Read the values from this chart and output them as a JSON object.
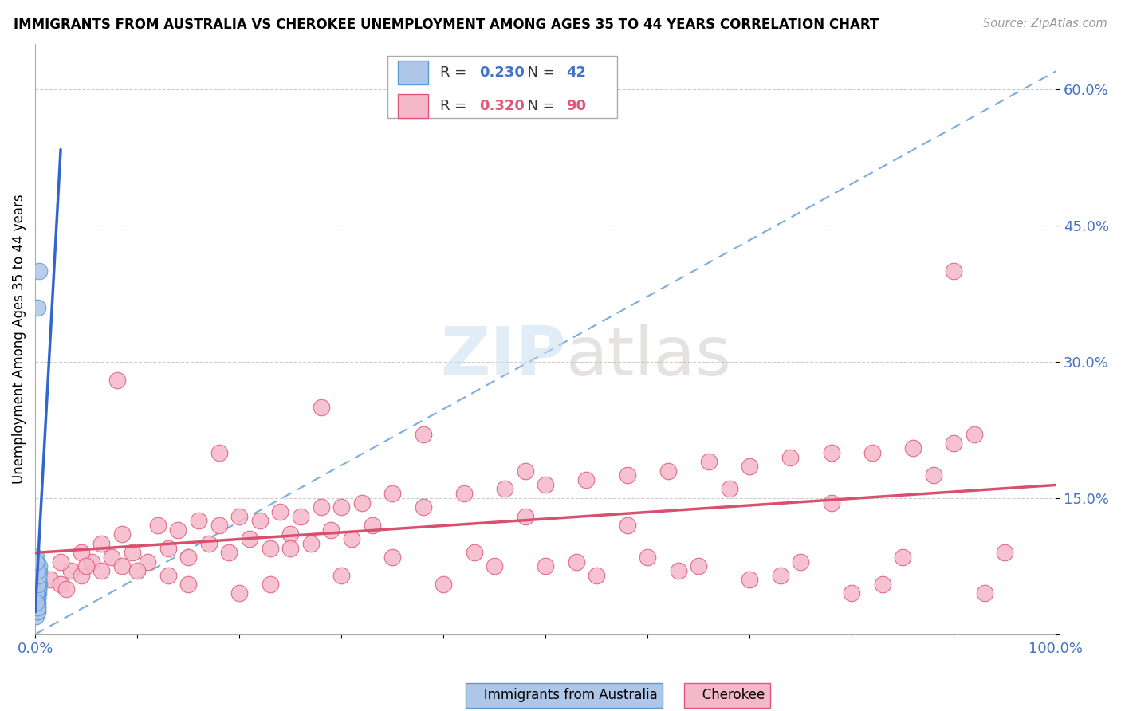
{
  "title": "IMMIGRANTS FROM AUSTRALIA VS CHEROKEE UNEMPLOYMENT AMONG AGES 35 TO 44 YEARS CORRELATION CHART",
  "source": "Source: ZipAtlas.com",
  "ylabel": "Unemployment Among Ages 35 to 44 years",
  "xlim": [
    0.0,
    1.0
  ],
  "ylim": [
    0.0,
    0.65
  ],
  "xticks": [
    0.0,
    0.1,
    0.2,
    0.3,
    0.4,
    0.5,
    0.6,
    0.7,
    0.8,
    0.9,
    1.0
  ],
  "xticklabels": [
    "0.0%",
    "",
    "",
    "",
    "",
    "",
    "",
    "",
    "",
    "",
    "100.0%"
  ],
  "yticks": [
    0.0,
    0.15,
    0.3,
    0.45,
    0.6
  ],
  "yticklabels": [
    "",
    "15.0%",
    "30.0%",
    "45.0%",
    "60.0%"
  ],
  "legend1_r": "0.230",
  "legend1_n": "42",
  "legend2_r": "0.320",
  "legend2_n": "90",
  "color_australia_fill": "#aec6e8",
  "color_australia_edge": "#5b9bd5",
  "color_cherokee_fill": "#f5b8cb",
  "color_cherokee_edge": "#e05878",
  "color_line_australia_solid": "#3366cc",
  "color_line_australia_dash": "#7aaddd",
  "color_line_cherokee": "#d94f6e",
  "watermark_color": "#d8eaf8",
  "tick_color": "#4472c4",
  "aus_x": [
    0.002,
    0.001,
    0.001,
    0.003,
    0.002,
    0.002,
    0.001,
    0.003,
    0.004,
    0.002,
    0.001,
    0.003,
    0.002,
    0.001,
    0.004,
    0.003,
    0.002,
    0.001,
    0.002,
    0.001,
    0.003,
    0.002,
    0.001,
    0.002,
    0.003,
    0.001,
    0.004,
    0.002,
    0.003,
    0.001,
    0.002,
    0.001,
    0.003,
    0.002,
    0.001,
    0.002,
    0.003,
    0.001,
    0.002,
    0.001,
    0.004,
    0.002
  ],
  "aus_y": [
    0.035,
    0.025,
    0.02,
    0.05,
    0.03,
    0.04,
    0.06,
    0.045,
    0.055,
    0.025,
    0.035,
    0.065,
    0.04,
    0.05,
    0.07,
    0.06,
    0.075,
    0.085,
    0.045,
    0.03,
    0.055,
    0.065,
    0.08,
    0.045,
    0.05,
    0.06,
    0.075,
    0.035,
    0.055,
    0.07,
    0.025,
    0.04,
    0.06,
    0.03,
    0.045,
    0.055,
    0.065,
    0.035,
    0.07,
    0.08,
    0.4,
    0.36
  ],
  "che_x": [
    0.015,
    0.025,
    0.035,
    0.045,
    0.055,
    0.065,
    0.075,
    0.085,
    0.095,
    0.11,
    0.13,
    0.15,
    0.17,
    0.19,
    0.21,
    0.23,
    0.25,
    0.27,
    0.29,
    0.31,
    0.025,
    0.045,
    0.065,
    0.085,
    0.12,
    0.14,
    0.16,
    0.18,
    0.2,
    0.22,
    0.24,
    0.26,
    0.28,
    0.32,
    0.35,
    0.38,
    0.42,
    0.46,
    0.5,
    0.54,
    0.58,
    0.62,
    0.66,
    0.7,
    0.74,
    0.78,
    0.82,
    0.86,
    0.9,
    0.3,
    0.1,
    0.2,
    0.3,
    0.4,
    0.5,
    0.6,
    0.7,
    0.8,
    0.9,
    0.05,
    0.15,
    0.25,
    0.35,
    0.45,
    0.55,
    0.65,
    0.75,
    0.85,
    0.95,
    0.08,
    0.18,
    0.28,
    0.38,
    0.48,
    0.58,
    0.68,
    0.78,
    0.88,
    0.33,
    0.43,
    0.53,
    0.63,
    0.73,
    0.83,
    0.93,
    0.13,
    0.23,
    0.03,
    0.92,
    0.48
  ],
  "che_y": [
    0.06,
    0.055,
    0.07,
    0.065,
    0.08,
    0.07,
    0.085,
    0.075,
    0.09,
    0.08,
    0.095,
    0.085,
    0.1,
    0.09,
    0.105,
    0.095,
    0.11,
    0.1,
    0.115,
    0.105,
    0.08,
    0.09,
    0.1,
    0.11,
    0.12,
    0.115,
    0.125,
    0.12,
    0.13,
    0.125,
    0.135,
    0.13,
    0.14,
    0.145,
    0.155,
    0.14,
    0.155,
    0.16,
    0.165,
    0.17,
    0.175,
    0.18,
    0.19,
    0.185,
    0.195,
    0.2,
    0.2,
    0.205,
    0.21,
    0.14,
    0.07,
    0.045,
    0.065,
    0.055,
    0.075,
    0.085,
    0.06,
    0.045,
    0.4,
    0.075,
    0.055,
    0.095,
    0.085,
    0.075,
    0.065,
    0.075,
    0.08,
    0.085,
    0.09,
    0.28,
    0.2,
    0.25,
    0.22,
    0.18,
    0.12,
    0.16,
    0.145,
    0.175,
    0.12,
    0.09,
    0.08,
    0.07,
    0.065,
    0.055,
    0.045,
    0.065,
    0.055,
    0.05,
    0.22,
    0.13
  ]
}
